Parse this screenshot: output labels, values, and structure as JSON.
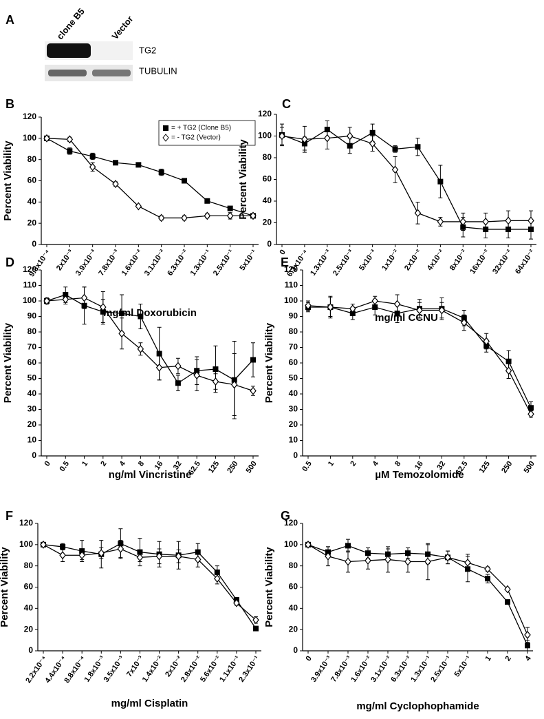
{
  "blot": {
    "panel": "A",
    "lanes": [
      "clone B5",
      "Vector"
    ],
    "bands": [
      "TG2",
      "TUBULIN"
    ]
  },
  "chart_data": [
    {
      "type": "line",
      "panel": "B",
      "ylabel": "Percent Viability",
      "xlabel": "mg/ml Doxorubicin",
      "categories": [
        "9.8x10⁻⁴",
        "2x10⁻³",
        "3.9x10⁻³",
        "7.8x10⁻³",
        "1.6x10⁻²",
        "3.1x10⁻²",
        "6.3x10⁻²",
        "1.3x10⁻¹",
        "2.5x10⁻¹",
        "5x10⁻¹"
      ],
      "ylim": [
        0,
        120
      ],
      "yticks": [
        0,
        20,
        40,
        60,
        80,
        100,
        120
      ],
      "legend": "upper right",
      "series": [
        {
          "name": "= + TG2 (Clone B5)",
          "color": "#000000",
          "marker": "square",
          "values": [
            100,
            88,
            83,
            77,
            75,
            68,
            60,
            41,
            34,
            27
          ],
          "errors": [
            2,
            3,
            3,
            2,
            2,
            3,
            2,
            2,
            2,
            2
          ]
        },
        {
          "name": "= - TG2 (Vector)",
          "color": "#000000",
          "marker": "diamond",
          "values": [
            100,
            99,
            73,
            57,
            36,
            25,
            25,
            27,
            27,
            27
          ],
          "errors": [
            2,
            2,
            4,
            2,
            1,
            2,
            2,
            2,
            3,
            2
          ]
        }
      ]
    },
    {
      "type": "line",
      "panel": "C",
      "ylabel": "Percent Viability",
      "xlabel": "mg/ml CCNU",
      "categories": [
        "0",
        "6.3x10⁻⁴",
        "1.3x10⁻³",
        "2.5x10⁻³",
        "5x10⁻³",
        "1x10⁻²",
        "2x10⁻²",
        "4x10⁻²",
        "8x10⁻²",
        "16x10⁻²",
        "32x10⁻²",
        "64x10⁻²"
      ],
      "ylim": [
        0,
        120
      ],
      "yticks": [
        0,
        20,
        40,
        60,
        80,
        100,
        120
      ],
      "series": [
        {
          "color": "#000000",
          "marker": "square",
          "values": [
            101,
            93,
            106,
            91,
            103,
            88,
            90,
            58,
            16,
            14,
            14,
            14
          ],
          "errors": [
            10,
            6,
            8,
            7,
            8,
            3,
            8,
            15,
            9,
            8,
            8,
            9
          ]
        },
        {
          "color": "#000000",
          "marker": "diamond",
          "values": [
            100,
            97,
            98,
            100,
            93,
            69,
            29,
            21,
            21,
            21,
            22,
            22
          ],
          "errors": [
            8,
            12,
            10,
            8,
            7,
            12,
            10,
            4,
            8,
            8,
            9,
            9
          ]
        }
      ]
    },
    {
      "type": "line",
      "panel": "D",
      "ylabel": "Percent Viability",
      "xlabel": "ng/ml Vincristine",
      "categories": [
        "0",
        "0.5",
        "1",
        "2",
        "4",
        "8",
        "16",
        "32",
        "62.5",
        "125",
        "250",
        "500"
      ],
      "ylim": [
        0,
        120
      ],
      "yticks": [
        0,
        10,
        20,
        30,
        40,
        50,
        60,
        70,
        80,
        90,
        100,
        110,
        120
      ],
      "series": [
        {
          "color": "#000000",
          "marker": "square",
          "values": [
            100,
            104,
            97,
            93,
            92,
            90,
            66,
            47,
            55,
            56,
            49,
            62
          ],
          "errors": [
            2,
            5,
            12,
            8,
            12,
            8,
            17,
            5,
            9,
            15,
            25,
            11
          ]
        },
        {
          "color": "#000000",
          "marker": "diamond",
          "values": [
            100,
            101,
            102,
            96,
            79,
            69,
            57,
            58,
            52,
            48,
            46,
            42
          ],
          "errors": [
            2,
            3,
            7,
            10,
            10,
            4,
            8,
            5,
            10,
            5,
            20,
            3
          ]
        }
      ]
    },
    {
      "type": "line",
      "panel": "E",
      "ylabel": "Percent Viability",
      "xlabel": "µM Temozolomide",
      "categories": [
        "0.5",
        "1",
        "2",
        "4",
        "8",
        "16",
        "32",
        "62.5",
        "125",
        "250",
        "500"
      ],
      "ylim": [
        0,
        120
      ],
      "yticks": [
        0,
        10,
        20,
        30,
        40,
        50,
        60,
        70,
        80,
        90,
        100,
        110,
        120
      ],
      "series": [
        {
          "color": "#000000",
          "marker": "square",
          "values": [
            96,
            96,
            92,
            96,
            92,
            95,
            95,
            89,
            71,
            61,
            31
          ],
          "errors": [
            3,
            7,
            4,
            5,
            6,
            6,
            7,
            5,
            4,
            7,
            4
          ]
        },
        {
          "color": "#000000",
          "marker": "diamond",
          "values": [
            97,
            96,
            95,
            100,
            98,
            94,
            94,
            86,
            74,
            55,
            27
          ],
          "errors": [
            3,
            6,
            3,
            3,
            6,
            5,
            5,
            5,
            5,
            5,
            2
          ]
        }
      ]
    },
    {
      "type": "line",
      "panel": "F",
      "ylabel": "Percent Viability",
      "xlabel": "mg/ml Cisplatin",
      "categories": [
        "2.2x10⁻⁴",
        "4.4x10⁻⁴",
        "8.8x10⁻⁴",
        "1.8x10⁻³",
        "3.5x10⁻³",
        "7x10⁻³",
        "1.4x10⁻²",
        "2x10⁻²",
        "2.8x10⁻²",
        "5.6x10⁻²",
        "1.1x10⁻¹",
        "2.3x10⁻¹"
      ],
      "ylim": [
        0,
        120
      ],
      "yticks": [
        0,
        20,
        40,
        60,
        80,
        100,
        120
      ],
      "series": [
        {
          "color": "#000000",
          "marker": "square",
          "values": [
            100,
            98,
            94,
            91,
            101,
            93,
            91,
            90,
            93,
            74,
            48,
            21
          ],
          "errors": [
            1,
            3,
            10,
            13,
            14,
            13,
            12,
            13,
            8,
            6,
            2,
            1
          ]
        },
        {
          "color": "#000000",
          "marker": "diamond",
          "values": [
            100,
            90,
            90,
            92,
            96,
            88,
            89,
            89,
            86,
            68,
            45,
            29
          ],
          "errors": [
            1,
            6,
            4,
            5,
            8,
            4,
            7,
            6,
            7,
            5,
            2,
            3
          ]
        }
      ]
    },
    {
      "type": "line",
      "panel": "G",
      "ylabel": "Percent Viability",
      "xlabel": "mg/ml Cyclophophamide",
      "categories": [
        "0",
        "3.9x10⁻³",
        "7.8x10⁻³",
        "1.6x10⁻²",
        "3.1x10⁻²",
        "6.3x10⁻²",
        "1.3x10⁻¹",
        "2.5x10⁻¹",
        "5x10⁻¹",
        "1",
        "2",
        "4"
      ],
      "ylim": [
        0,
        120
      ],
      "yticks": [
        0,
        20,
        40,
        60,
        80,
        100,
        120
      ],
      "series": [
        {
          "color": "#000000",
          "marker": "square",
          "values": [
            100,
            93,
            99,
            92,
            91,
            92,
            91,
            88,
            77,
            68,
            46,
            5
          ],
          "errors": [
            2,
            5,
            6,
            5,
            5,
            5,
            9,
            6,
            12,
            4,
            2,
            5
          ]
        },
        {
          "color": "#000000",
          "marker": "diamond",
          "values": [
            100,
            89,
            84,
            85,
            86,
            84,
            84,
            88,
            83,
            77,
            58,
            15
          ],
          "errors": [
            2,
            9,
            10,
            8,
            12,
            10,
            17,
            6,
            8,
            2,
            1,
            7
          ]
        }
      ]
    }
  ]
}
